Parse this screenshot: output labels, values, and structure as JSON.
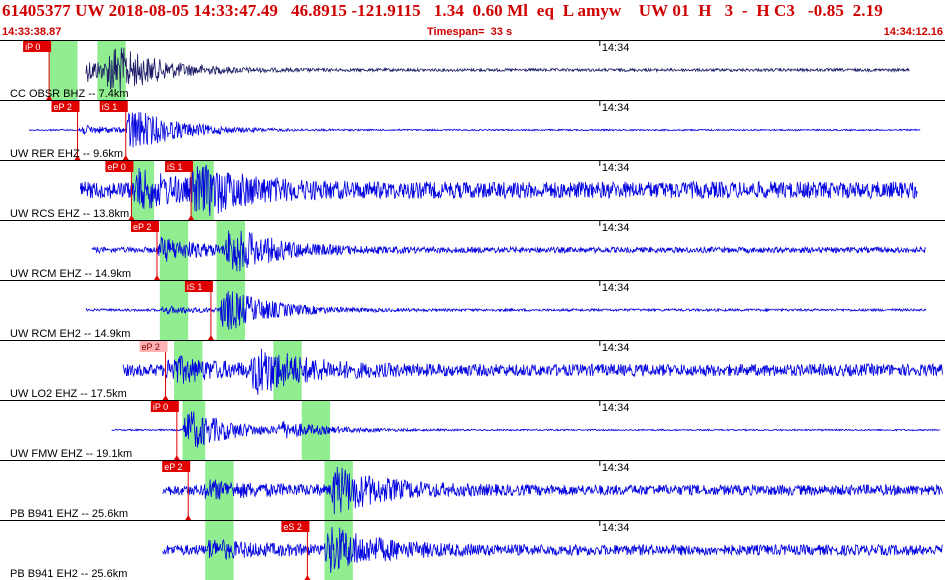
{
  "header": {
    "title": "61405377 UW 2018-08-05 14:33:47.49   46.8915 -121.9115   1.34  0.60 Ml  eq  L amyw    UW 01  H   3  -  H C3   -0.85  2.19",
    "start_time": "14:33:38.87",
    "timespan": "Timespan=  33 s",
    "end_time": "14:34:12.16"
  },
  "colors": {
    "title": "#d00000",
    "trace_first": "#1a1a66",
    "trace": "#0000e0",
    "pick_box": "#e00000",
    "pick_box_weak": "#ffb0b0",
    "window": "#90ee90"
  },
  "time_axis": {
    "start": 38.87,
    "end": 72.16,
    "minute_label": "14:34",
    "minute_at": 60.0
  },
  "channels": [
    {
      "label": "CC OBSR BHZ -- 7.4km",
      "trace_start": 41.9,
      "trace_end": 70.9,
      "amp": 1.0,
      "noise": 0.06,
      "green": [
        {
          "t": 40.6,
          "w": 1.0
        },
        {
          "t": 42.3,
          "w": 1.0
        }
      ],
      "picks": [
        {
          "label": "iP 0",
          "t": 40.6,
          "weak": false
        }
      ],
      "arrivals": [
        {
          "t": 41.1,
          "amp": 0.75
        },
        {
          "t": 42.6,
          "amp": 1.0
        }
      ]
    },
    {
      "label": "UW RER EHZ -- 9.6km",
      "trace_start": 39.9,
      "trace_end": 71.3,
      "amp": 1.0,
      "noise": 0.03,
      "green": [],
      "picks": [
        {
          "label": "eP 2",
          "t": 41.6,
          "weak": false
        },
        {
          "label": "iS 1",
          "t": 43.3,
          "weak": false
        }
      ],
      "arrivals": [
        {
          "t": 41.6,
          "amp": 0.2
        },
        {
          "t": 43.3,
          "amp": 1.0
        }
      ]
    },
    {
      "label": "UW RCS EHZ -- 13.8km",
      "trace_start": 41.7,
      "trace_end": 71.2,
      "amp": 1.0,
      "noise": 0.35,
      "green": [
        {
          "t": 43.5,
          "w": 0.8
        },
        {
          "t": 45.6,
          "w": 0.8
        }
      ],
      "picks": [
        {
          "label": "eP 0",
          "t": 43.5,
          "weak": false
        },
        {
          "label": "iS 1",
          "t": 45.6,
          "weak": false
        }
      ],
      "arrivals": [
        {
          "t": 43.5,
          "amp": 0.7
        },
        {
          "t": 45.6,
          "amp": 1.0
        }
      ]
    },
    {
      "label": "UW RCM EHZ -- 14.9km",
      "trace_start": 42.1,
      "trace_end": 71.5,
      "amp": 1.0,
      "noise": 0.12,
      "green": [
        {
          "t": 44.5,
          "w": 1.0
        },
        {
          "t": 46.5,
          "w": 1.0
        }
      ],
      "picks": [
        {
          "label": "eP 2",
          "t": 44.4,
          "weak": false
        }
      ],
      "arrivals": [
        {
          "t": 44.4,
          "amp": 0.5
        },
        {
          "t": 46.8,
          "amp": 1.0
        }
      ]
    },
    {
      "label": "UW RCM EH2 -- 14.9km",
      "trace_start": 41.9,
      "trace_end": 71.5,
      "amp": 1.0,
      "noise": 0.05,
      "green": [
        {
          "t": 44.5,
          "w": 1.0
        },
        {
          "t": 46.5,
          "w": 1.0
        }
      ],
      "picks": [
        {
          "label": "iS 1",
          "t": 46.3,
          "weak": false
        }
      ],
      "arrivals": [
        {
          "t": 44.5,
          "amp": 0.15
        },
        {
          "t": 46.6,
          "amp": 1.0
        }
      ]
    },
    {
      "label": "UW LO2 EHZ -- 17.5km",
      "trace_start": 43.2,
      "trace_end": 72.2,
      "amp": 1.0,
      "noise": 0.25,
      "green": [
        {
          "t": 45.0,
          "w": 1.0
        },
        {
          "t": 48.5,
          "w": 1.0
        }
      ],
      "picks": [
        {
          "label": "eP 2",
          "t": 44.7,
          "weak": true
        }
      ],
      "arrivals": [
        {
          "t": 44.7,
          "amp": 0.5
        },
        {
          "t": 47.7,
          "amp": 1.0
        }
      ]
    },
    {
      "label": "UW FMW EHZ -- 19.1km",
      "trace_start": 42.8,
      "trace_end": 72.0,
      "amp": 1.0,
      "noise": 0.03,
      "green": [
        {
          "t": 45.3,
          "w": 0.8
        },
        {
          "t": 49.5,
          "w": 1.0
        }
      ],
      "picks": [
        {
          "label": "iP 0",
          "t": 45.1,
          "weak": false
        }
      ],
      "arrivals": [
        {
          "t": 45.3,
          "amp": 1.0
        },
        {
          "t": 48.6,
          "amp": 0.3
        }
      ]
    },
    {
      "label": "PB B941 EHZ -- 25.6km",
      "trace_start": 44.6,
      "trace_end": 72.5,
      "amp": 1.0,
      "noise": 0.22,
      "green": [
        {
          "t": 46.1,
          "w": 1.0
        },
        {
          "t": 50.3,
          "w": 1.0
        }
      ],
      "picks": [
        {
          "label": "eP 2",
          "t": 45.5,
          "weak": false
        }
      ],
      "arrivals": [
        {
          "t": 46.0,
          "amp": 0.3
        },
        {
          "t": 50.5,
          "amp": 1.0
        }
      ]
    },
    {
      "label": "PB B941 EH2 -- 25.6km",
      "trace_start": 44.6,
      "trace_end": 72.5,
      "amp": 1.0,
      "noise": 0.22,
      "green": [
        {
          "t": 46.1,
          "w": 1.0
        },
        {
          "t": 50.3,
          "w": 1.0
        }
      ],
      "picks": [
        {
          "label": "eS 2",
          "t": 49.7,
          "weak": false
        }
      ],
      "arrivals": [
        {
          "t": 46.1,
          "amp": 0.3
        },
        {
          "t": 50.3,
          "amp": 1.0
        }
      ]
    }
  ]
}
